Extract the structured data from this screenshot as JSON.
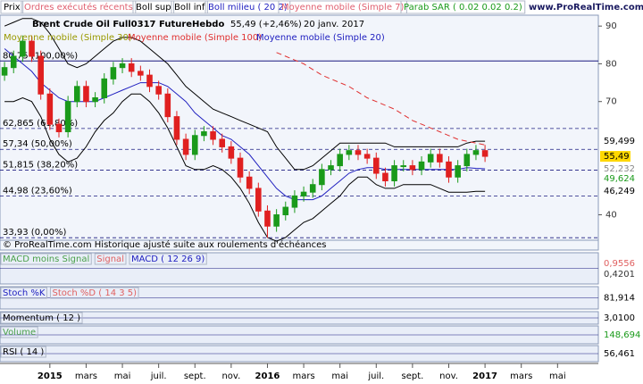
{
  "toolbar": {
    "items": [
      "Prix",
      "Ordres exécutés récents",
      "Boll milieu ( 20 2)",
      "Moyenne mobile (Simple 7)",
      "Parab SAR ( 0.02 0.02 0.2)",
      "Moyenne mobile (Simple 30)"
    ],
    "site": "www.ProRealTime.com"
  },
  "chart_data": {
    "type": "candlestick",
    "title": "Brent Crude Oil Full0317 Future",
    "timeframe": "Hebdo",
    "last": "55,49 (+2,46%)",
    "date": "20 janv. 2017",
    "categories": [
      null,
      null,
      null,
      null,
      null,
      "2015",
      null,
      null,
      null,
      "mars",
      null,
      null,
      null,
      "mai",
      null,
      null,
      null,
      "juil.",
      null,
      null,
      null,
      "sept.",
      null,
      null,
      null,
      "nov.",
      null,
      null,
      null,
      "2016",
      null,
      null,
      null,
      "mars",
      null,
      null,
      null,
      "mai",
      null,
      null,
      null,
      "juil.",
      null,
      null,
      null,
      "sept.",
      null,
      null,
      null,
      "nov.",
      null,
      null,
      null,
      "2017",
      null,
      null,
      null,
      "mars",
      null,
      null,
      null,
      "mai",
      null,
      null,
      null,
      null
    ],
    "open": [
      77,
      79,
      82,
      86,
      82,
      72,
      64,
      62,
      70,
      74,
      70,
      71,
      76,
      79,
      80,
      78,
      77,
      74,
      72,
      66,
      60,
      56,
      61,
      62,
      60,
      58,
      55,
      50,
      47,
      41,
      37,
      40,
      42,
      45,
      46,
      48,
      52,
      53,
      56,
      57,
      56,
      55,
      51,
      49,
      53,
      53,
      52,
      54,
      56,
      54,
      50,
      53,
      56,
      57,
      null,
      null,
      null,
      null,
      null,
      null,
      null,
      null,
      null,
      null,
      null,
      null
    ],
    "high": [
      80.5,
      83.5,
      87.5,
      87.5,
      83.5,
      73.5,
      65.5,
      71.5,
      75.5,
      75.5,
      72.5,
      77.5,
      80.5,
      81.5,
      81.5,
      79.5,
      78.5,
      75.5,
      73.5,
      67.5,
      61.5,
      62.5,
      63.5,
      63.5,
      61.5,
      59.5,
      56.5,
      51.5,
      48.5,
      42.5,
      41.5,
      43.5,
      46.5,
      47.5,
      49.5,
      53.5,
      54.5,
      57.5,
      58.5,
      58.5,
      57.5,
      56.5,
      52.5,
      54.5,
      54.5,
      54.5,
      55.5,
      57.5,
      57.5,
      55.5,
      54.5,
      57.5,
      58.5,
      58.5,
      null,
      null,
      null,
      null,
      null,
      null,
      null,
      null,
      null,
      null,
      null,
      null
    ],
    "low": [
      75.5,
      77.5,
      80.5,
      80.5,
      70.5,
      62.5,
      60.5,
      60.5,
      68.5,
      68.5,
      68.5,
      69.5,
      74.5,
      77.5,
      76.5,
      75.5,
      72.5,
      70.5,
      64.5,
      58.5,
      54.5,
      54.5,
      59.5,
      58.5,
      56.5,
      53.5,
      48.5,
      45.5,
      39.5,
      33.9,
      35.5,
      38.5,
      40.5,
      43.5,
      44.5,
      46.5,
      50.5,
      51.5,
      54.5,
      54.5,
      53.5,
      49.5,
      47.5,
      47.5,
      51.5,
      50.5,
      50.5,
      52.5,
      52.5,
      48.5,
      48.5,
      51.5,
      54.5,
      54,
      null,
      null,
      null,
      null,
      null,
      null,
      null,
      null,
      null,
      null,
      null,
      null
    ],
    "close": [
      79,
      82,
      86,
      82,
      72,
      64,
      62,
      70,
      74,
      70,
      71,
      76,
      79,
      80,
      78,
      77,
      74,
      72,
      66,
      60,
      56,
      61,
      62,
      60,
      58,
      55,
      50,
      47,
      41,
      37,
      40,
      42,
      45,
      46,
      48,
      52,
      53,
      56,
      57,
      56,
      55,
      51,
      49,
      53,
      53,
      52,
      54,
      56,
      54,
      50,
      53,
      56,
      57,
      55.49,
      null,
      null,
      null,
      null,
      null,
      null,
      null,
      null,
      null,
      null,
      null,
      null
    ],
    "up_color": "#1a9a1a",
    "down_color": "#e02020",
    "series": [
      {
        "name": "Boll sup",
        "color": "#000000",
        "values": [
          90,
          91,
          92,
          92,
          91,
          88,
          84,
          80,
          79,
          80,
          82,
          84,
          86,
          87,
          87,
          86,
          84,
          82,
          80,
          77,
          74,
          72,
          70,
          68,
          67,
          66,
          65,
          64,
          63,
          62,
          58,
          55,
          52,
          52,
          53,
          55,
          57,
          59,
          59,
          59,
          59,
          59,
          59,
          58,
          58,
          58,
          58,
          58,
          58,
          58,
          58,
          59,
          59.5,
          59.5,
          null,
          null,
          null,
          null,
          null,
          null,
          null,
          null,
          null,
          null,
          null,
          null
        ]
      },
      {
        "name": "Boll inf",
        "color": "#000000",
        "values": [
          70,
          70,
          71,
          70,
          66,
          60,
          56,
          54,
          55,
          58,
          62,
          65,
          67,
          70,
          72,
          72,
          70,
          67,
          63,
          58,
          53,
          52,
          52,
          53,
          52,
          50,
          47,
          43,
          38,
          34,
          33,
          34,
          36,
          38,
          39,
          41,
          43,
          45,
          48,
          50,
          50,
          48,
          47,
          47,
          48,
          48,
          48,
          48,
          47,
          46,
          46,
          46,
          46.2,
          46.2,
          null,
          null,
          null,
          null,
          null,
          null,
          null,
          null,
          null,
          null,
          null,
          null
        ]
      },
      {
        "name": "Moyenne mobile (Simple 20)",
        "color": "#2020c0",
        "values": [
          84,
          82,
          80,
          78,
          75,
          73,
          71,
          70,
          70,
          70,
          70,
          71,
          72,
          73,
          74,
          75,
          75,
          75,
          74,
          72,
          70,
          67,
          65,
          63,
          61,
          60,
          58,
          56,
          53,
          50,
          47,
          45,
          44,
          44,
          44,
          45,
          47,
          49,
          51,
          52,
          52.5,
          52.5,
          52,
          52,
          52,
          52,
          52,
          52,
          52,
          52,
          52,
          52.5,
          52.3,
          52.2,
          null,
          null,
          null,
          null,
          null,
          null,
          null,
          null,
          null,
          null,
          null,
          null
        ]
      },
      {
        "name": "Moyenne mobile (Simple 100)",
        "color": "#e03030",
        "dashed": true,
        "values": [
          null,
          null,
          null,
          null,
          null,
          null,
          null,
          null,
          null,
          null,
          null,
          null,
          null,
          null,
          null,
          null,
          null,
          null,
          null,
          null,
          null,
          null,
          null,
          null,
          null,
          null,
          null,
          null,
          null,
          null,
          83,
          82,
          81,
          80,
          78.5,
          77,
          76,
          75,
          74,
          72.5,
          71,
          70,
          69,
          68,
          66.5,
          65,
          64,
          63,
          62,
          61,
          60,
          59.5,
          59,
          58.5,
          null,
          null,
          null,
          null,
          null,
          null,
          null,
          null,
          null,
          null,
          null,
          null
        ]
      }
    ],
    "ylim": [
      33.5,
      91.7
    ],
    "yticks": [
      40,
      70,
      80,
      90
    ],
    "levels": [
      {
        "value": 80.75,
        "label": "80,75 (100,00%)"
      },
      {
        "value": 62.865,
        "label": "62,865 (61,80%)"
      },
      {
        "value": 57.34,
        "label": "57,34 (50,00%)"
      },
      {
        "value": 51.815,
        "label": "51,815 (38,20%)"
      },
      {
        "value": 44.98,
        "label": "44,98 (23,60%)"
      },
      {
        "value": 33.93,
        "label": "33,93 (0,00%)"
      }
    ],
    "last_values": [
      {
        "value": 59.499,
        "label": "59,499",
        "color": "#000000"
      },
      {
        "value": 55.49,
        "label": "55,49",
        "color": "#000000",
        "box": "#ffd800"
      },
      {
        "value": 52.232,
        "label": "52,232",
        "color": "#888888"
      },
      {
        "value": 49.624,
        "label": "49,624",
        "color": "#1a9a1a"
      },
      {
        "value": 46.249,
        "label": "46,249",
        "color": "#000000"
      }
    ],
    "note": "© ProRealTime.com Historique ajusté suite aux roulements d'échéances"
  },
  "panels": [
    {
      "legend": [
        {
          "text": "MACD moins Signal",
          "color": "#4aa04a"
        },
        {
          "text": "Signal",
          "color": "#e06060"
        },
        {
          "text": "MACD ( 12 26 9)",
          "color": "#2020c0"
        }
      ],
      "labels": [
        {
          "text": "0,9556",
          "color": "#e06060"
        },
        {
          "text": "0,4201",
          "color": "#333333"
        }
      ]
    },
    {
      "legend": [
        {
          "text": "Stoch %K",
          "color": "#2020c0"
        },
        {
          "text": "Stoch %D ( 14 3 5)",
          "color": "#e06060"
        }
      ],
      "labels": [
        {
          "text": "81,914",
          "color": "#000000"
        }
      ]
    },
    {
      "legend": [
        {
          "text": "Momentum ( 12 )",
          "color": "#000000"
        }
      ],
      "labels": [
        {
          "text": "3,0100",
          "color": "#000000"
        }
      ]
    },
    {
      "legend": [
        {
          "text": "Volume",
          "color": "#4aa04a"
        }
      ],
      "labels": [
        {
          "text": "148,694",
          "color": "#1a9a1a"
        }
      ]
    },
    {
      "legend": [
        {
          "text": "RSI ( 14 )",
          "color": "#000000"
        }
      ],
      "labels": [
        {
          "text": "56,461",
          "color": "#000000"
        }
      ]
    }
  ]
}
